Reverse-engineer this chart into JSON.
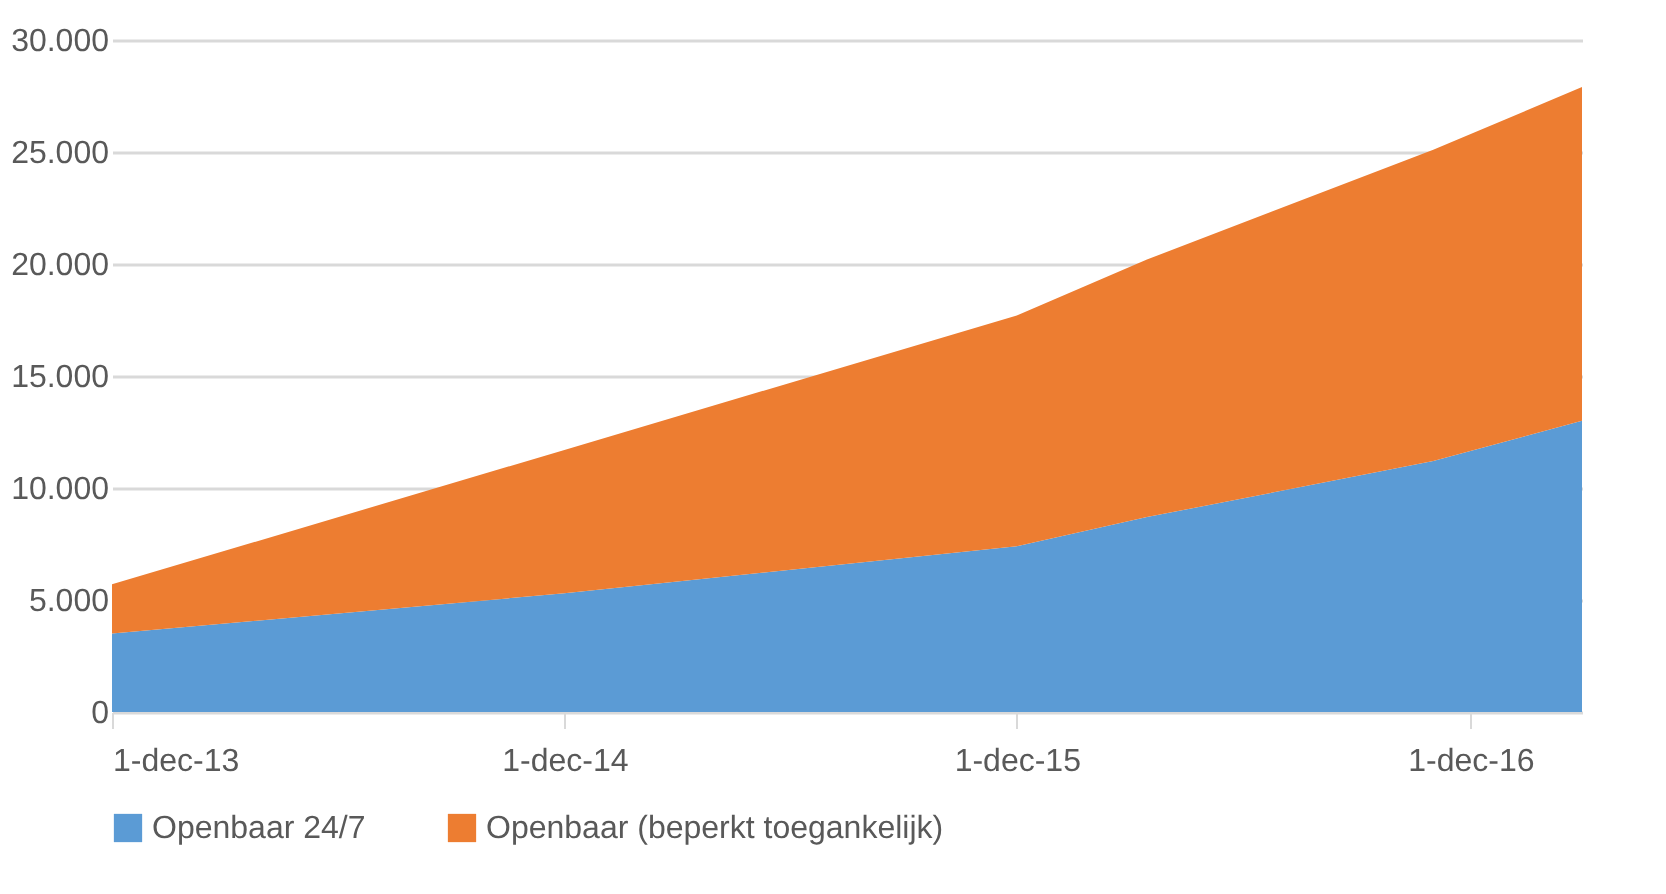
{
  "chart_data": {
    "type": "area",
    "stacked": true,
    "x": [
      "2013-12-01",
      "2014-12-01",
      "2015-12-01",
      "2016-03-15",
      "2016-11-01",
      "2017-03-01"
    ],
    "series": [
      {
        "name": "Openbaar 24/7",
        "color": "#5b9bd5",
        "values": [
          3500,
          5300,
          7400,
          8700,
          11200,
          13000
        ]
      },
      {
        "name": "Openbaar (beperkt toegankelijk)",
        "color": "#ed7d31",
        "values": [
          2200,
          6400,
          10300,
          11500,
          13900,
          14900
        ]
      }
    ],
    "xlim": [
      "2013-12-01",
      "2017-03-01"
    ],
    "xticks": [
      {
        "value": "2013-12-01",
        "label": "1-dec-13"
      },
      {
        "value": "2014-12-01",
        "label": "1-dec-14"
      },
      {
        "value": "2015-12-01",
        "label": "1-dec-15"
      },
      {
        "value": "2016-12-01",
        "label": "1-dec-16"
      }
    ],
    "ylim": [
      0,
      30000
    ],
    "yticks": [
      {
        "value": 0,
        "label": "0"
      },
      {
        "value": 5000,
        "label": "5.000"
      },
      {
        "value": 10000,
        "label": "10.000"
      },
      {
        "value": 15000,
        "label": "15.000"
      },
      {
        "value": 20000,
        "label": "20.000"
      },
      {
        "value": 25000,
        "label": "25.000"
      },
      {
        "value": 30000,
        "label": "30.000"
      }
    ],
    "grid": "y",
    "legend": "bottom"
  }
}
